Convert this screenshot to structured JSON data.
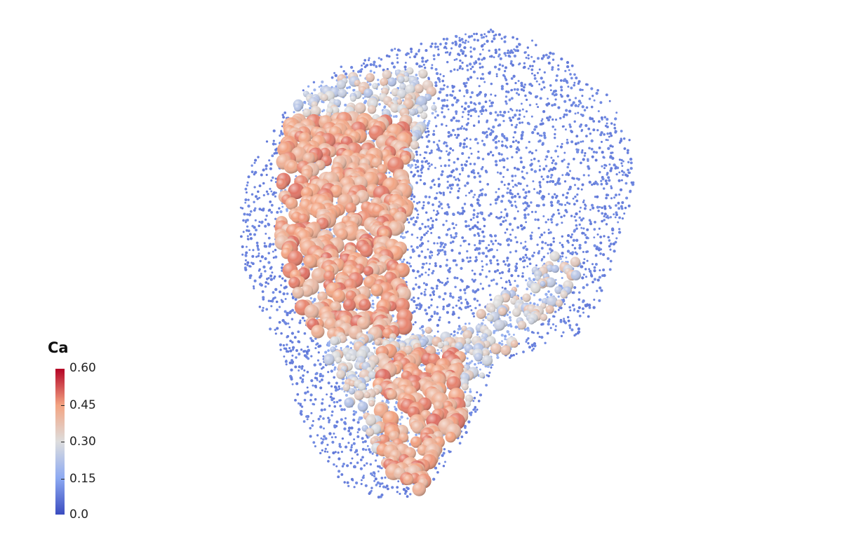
{
  "scalar_bar": {
    "title": "Ca",
    "ticks": [
      "0.60",
      "0.45",
      "0.30",
      "0.15",
      "0.0"
    ],
    "range": [
      0.0,
      0.6
    ],
    "colormap": [
      "#3b4cc0",
      "#8daaf2",
      "#dddddd",
      "#f3a482",
      "#b40426"
    ]
  },
  "point_colors": {
    "low": "#7b8fb8",
    "high": "#d9704f"
  }
}
